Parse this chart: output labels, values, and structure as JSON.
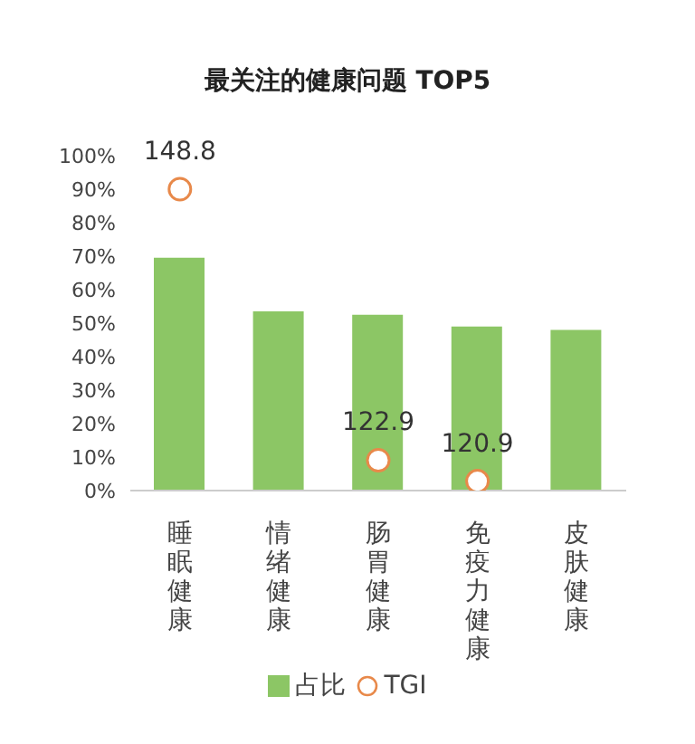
{
  "chart_data": {
    "type": "bar",
    "title": "最关注的健康问题 TOP5",
    "categories": [
      "睡眠健康",
      "情绪健康",
      "肠胃健康",
      "免疫力健康",
      "皮肤健康"
    ],
    "series": [
      {
        "name": "占比",
        "color": "#8cc665",
        "values": [
          69.5,
          53.5,
          52.5,
          49,
          48
        ]
      },
      {
        "name": "TGI",
        "type": "scatter",
        "axis": "y2",
        "color": "#e8894a",
        "values": [
          148.8,
          null,
          122.9,
          120.9,
          null
        ],
        "value_labels": [
          "148.8",
          null,
          "122.9",
          "120.9",
          null
        ]
      }
    ],
    "ylim": [
      0,
      100
    ],
    "yticks": [
      {
        "value": 0,
        "label": "0%"
      },
      {
        "value": 10,
        "label": "10%"
      },
      {
        "value": 20,
        "label": "20%"
      },
      {
        "value": 30,
        "label": "30%"
      },
      {
        "value": 40,
        "label": "40%"
      },
      {
        "value": 50,
        "label": "50%"
      },
      {
        "value": 60,
        "label": "60%"
      },
      {
        "value": 70,
        "label": "70%"
      },
      {
        "value": 80,
        "label": "80%"
      },
      {
        "value": 90,
        "label": "90%"
      },
      {
        "value": 100,
        "label": "100%"
      }
    ],
    "tick_labels": "xy",
    "grid": false,
    "legend": "bottom",
    "marker": "circle"
  }
}
